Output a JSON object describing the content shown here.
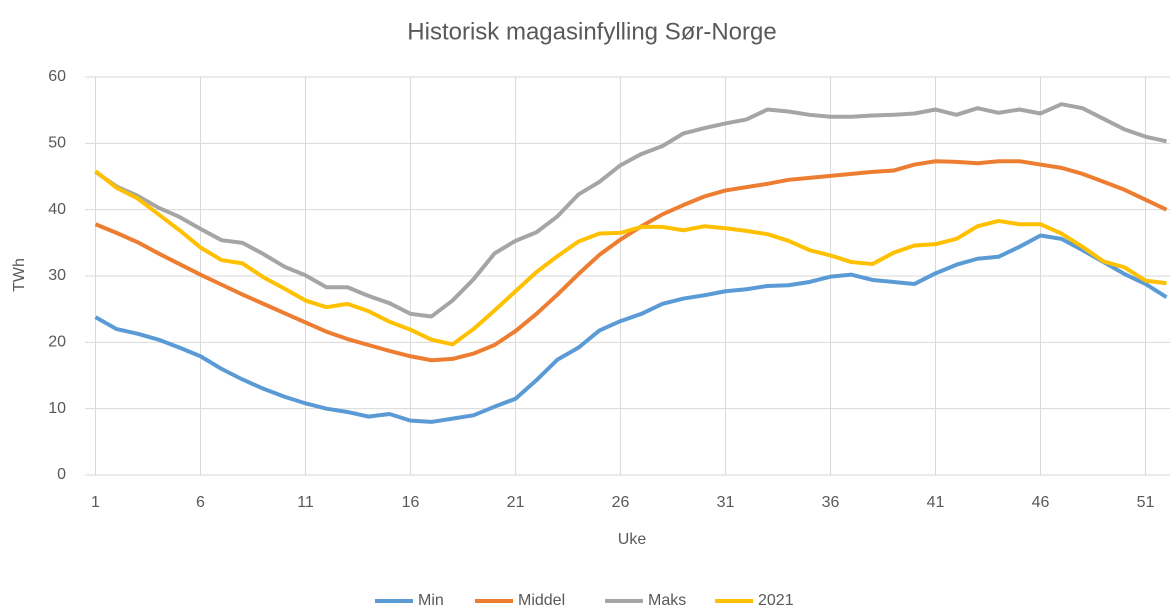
{
  "chart_data": {
    "type": "line",
    "title": "Historisk magasinfylling Sør-Norge",
    "xlabel": "Uke",
    "ylabel": "TWh",
    "x": [
      1,
      2,
      3,
      4,
      5,
      6,
      7,
      8,
      9,
      10,
      11,
      12,
      13,
      14,
      15,
      16,
      17,
      18,
      19,
      20,
      21,
      22,
      23,
      24,
      25,
      26,
      27,
      28,
      29,
      30,
      31,
      32,
      33,
      34,
      35,
      36,
      37,
      38,
      39,
      40,
      41,
      42,
      43,
      44,
      45,
      46,
      47,
      48,
      49,
      50,
      51,
      52
    ],
    "xlim": [
      0.5,
      53.5
    ],
    "xticks": [
      1,
      6,
      11,
      16,
      21,
      26,
      31,
      36,
      41,
      46,
      51
    ],
    "ylim": [
      0,
      60
    ],
    "yticks": [
      0,
      10,
      20,
      30,
      40,
      50,
      60
    ],
    "grid": true,
    "legend": "bottom",
    "series": [
      {
        "name": "Min",
        "color": "#5b9bd5",
        "values": [
          23.8,
          22,
          21.3,
          20.4,
          19.2,
          17.9,
          16,
          14.4,
          13,
          11.8,
          10.8,
          10,
          9.5,
          8.8,
          9.2,
          8.2,
          8.0,
          8.5,
          9,
          10.3,
          11.5,
          14.3,
          17.4,
          19.2,
          21.8,
          23.2,
          24.3,
          25.8,
          26.6,
          27.1,
          27.7,
          28,
          28.5,
          28.6,
          29.1,
          29.9,
          30.2,
          29.4,
          29.1,
          28.8,
          30.4,
          31.7,
          32.6,
          32.9,
          34.4,
          36.1,
          35.6,
          33.9,
          32.1,
          30.3,
          28.8,
          26.8
        ]
      },
      {
        "name": "Middel",
        "color": "#ed7d31",
        "values": [
          37.8,
          36.5,
          35.1,
          33.4,
          31.8,
          30.2,
          28.7,
          27.2,
          25.8,
          24.4,
          23,
          21.6,
          20.5,
          19.6,
          18.7,
          17.9,
          17.3,
          17.5,
          18.3,
          19.6,
          21.7,
          24.3,
          27.2,
          30.3,
          33.2,
          35.5,
          37.5,
          39.3,
          40.7,
          42,
          42.9,
          43.4,
          43.9,
          44.5,
          44.8,
          45.1,
          45.4,
          45.7,
          45.9,
          46.8,
          47.3,
          47.2,
          47,
          47.3,
          47.3,
          46.8,
          46.3,
          45.4,
          44.2,
          43,
          41.5,
          40
        ]
      },
      {
        "name": "Maks",
        "color": "#a5a5a5",
        "values": [
          45.7,
          43.5,
          42.1,
          40.3,
          38.9,
          37.1,
          35.4,
          35,
          33.3,
          31.4,
          30.1,
          28.3,
          28.3,
          27,
          25.9,
          24.3,
          23.9,
          26.3,
          29.5,
          33.4,
          35.3,
          36.6,
          39,
          42.3,
          44.2,
          46.7,
          48.4,
          49.6,
          51.5,
          52.3,
          53,
          53.6,
          55.1,
          54.8,
          54.3,
          54,
          54,
          54.2,
          54.3,
          54.5,
          55.1,
          54.3,
          55.3,
          54.6,
          55.1,
          54.5,
          55.9,
          55.3,
          53.7,
          52.1,
          51,
          50.3
        ]
      },
      {
        "name": "2021",
        "color": "#ffc000",
        "values": [
          45.8,
          43.3,
          41.7,
          39.3,
          36.9,
          34.3,
          32.4,
          31.9,
          29.8,
          28.1,
          26.3,
          25.3,
          25.8,
          24.7,
          23.1,
          21.9,
          20.4,
          19.7,
          22,
          24.8,
          27.7,
          30.6,
          33,
          35.2,
          36.4,
          36.5,
          37.4,
          37.4,
          36.9,
          37.5,
          37.2,
          36.8,
          36.3,
          35.3,
          33.9,
          33.1,
          32.1,
          31.8,
          33.5,
          34.6,
          34.8,
          35.6,
          37.5,
          38.3,
          37.8,
          37.8,
          36.4,
          34.4,
          32.2,
          31.3,
          29.3,
          28.9
        ]
      }
    ]
  }
}
